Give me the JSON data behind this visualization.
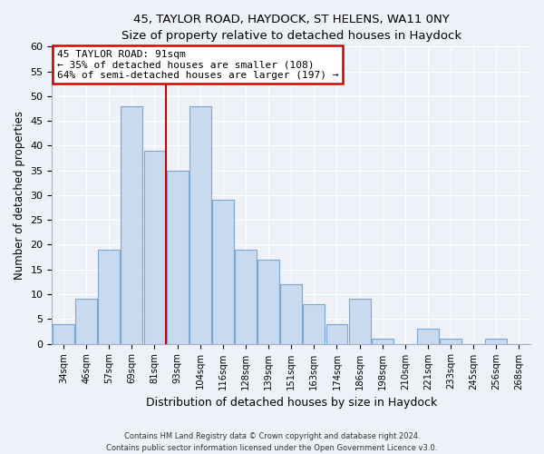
{
  "title": "45, TAYLOR ROAD, HAYDOCK, ST HELENS, WA11 0NY",
  "subtitle": "Size of property relative to detached houses in Haydock",
  "xlabel": "Distribution of detached houses by size in Haydock",
  "ylabel": "Number of detached properties",
  "bar_labels": [
    "34sqm",
    "46sqm",
    "57sqm",
    "69sqm",
    "81sqm",
    "93sqm",
    "104sqm",
    "116sqm",
    "128sqm",
    "139sqm",
    "151sqm",
    "163sqm",
    "174sqm",
    "186sqm",
    "198sqm",
    "210sqm",
    "221sqm",
    "233sqm",
    "245sqm",
    "256sqm",
    "268sqm"
  ],
  "bar_values": [
    4,
    9,
    19,
    48,
    39,
    35,
    48,
    29,
    19,
    17,
    12,
    8,
    4,
    9,
    1,
    0,
    3,
    1,
    0,
    1,
    0
  ],
  "bar_color": "#c9d9ee",
  "bar_edge_color": "#7ba7d4",
  "vline_color": "#cc0000",
  "ylim": [
    0,
    60
  ],
  "yticks": [
    0,
    5,
    10,
    15,
    20,
    25,
    30,
    35,
    40,
    45,
    50,
    55,
    60
  ],
  "annotation_title": "45 TAYLOR ROAD: 91sqm",
  "annotation_line1": "← 35% of detached houses are smaller (108)",
  "annotation_line2": "64% of semi-detached houses are larger (197) →",
  "annotation_box_color": "#ffffff",
  "annotation_box_edge": "#cc0000",
  "footer_line1": "Contains HM Land Registry data © Crown copyright and database right 2024.",
  "footer_line2": "Contains public sector information licensed under the Open Government Licence v3.0.",
  "bg_color": "#eef2f8",
  "plot_bg_color": "#eef2f8",
  "grid_color": "#ffffff",
  "spine_color": "#aaaacc"
}
